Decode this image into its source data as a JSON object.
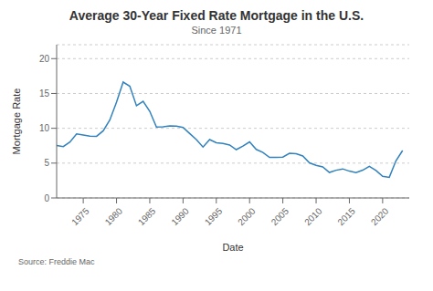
{
  "chart_data": {
    "type": "line",
    "title": "Average 30-Year Fixed Rate Mortgage in the U.S.",
    "subtitle": "Since 1971",
    "xlabel": "Date",
    "ylabel": "Mortgage Rate",
    "source": "Source: Freddie Mac",
    "x": [
      1971,
      1972,
      1973,
      1974,
      1975,
      1976,
      1977,
      1978,
      1979,
      1980,
      1981,
      1982,
      1983,
      1984,
      1985,
      1986,
      1987,
      1988,
      1989,
      1990,
      1991,
      1992,
      1993,
      1994,
      1995,
      1996,
      1997,
      1998,
      1999,
      2000,
      2001,
      2002,
      2003,
      2004,
      2005,
      2006,
      2007,
      2008,
      2009,
      2010,
      2011,
      2012,
      2013,
      2014,
      2015,
      2016,
      2017,
      2018,
      2019,
      2020,
      2021,
      2022,
      2023
    ],
    "values": [
      7.54,
      7.38,
      8.04,
      9.19,
      9.05,
      8.87,
      8.85,
      9.64,
      11.2,
      13.74,
      16.63,
      16.04,
      13.24,
      13.88,
      12.43,
      10.19,
      10.21,
      10.34,
      10.32,
      10.13,
      9.25,
      8.39,
      7.31,
      8.38,
      7.93,
      7.81,
      7.6,
      6.94,
      7.44,
      8.05,
      6.97,
      6.54,
      5.83,
      5.84,
      5.87,
      6.41,
      6.34,
      6.03,
      5.04,
      4.69,
      4.45,
      3.66,
      3.98,
      4.17,
      3.85,
      3.65,
      3.99,
      4.54,
      3.94,
      3.11,
      2.96,
      5.34,
      6.81
    ],
    "xlim": [
      1971,
      2024
    ],
    "ylim": [
      0,
      22
    ],
    "xticks": [
      1975,
      1980,
      1985,
      1990,
      1995,
      2000,
      2005,
      2010,
      2015,
      2020
    ],
    "yticks": [
      0,
      5,
      10,
      15,
      20
    ],
    "grid": true
  }
}
